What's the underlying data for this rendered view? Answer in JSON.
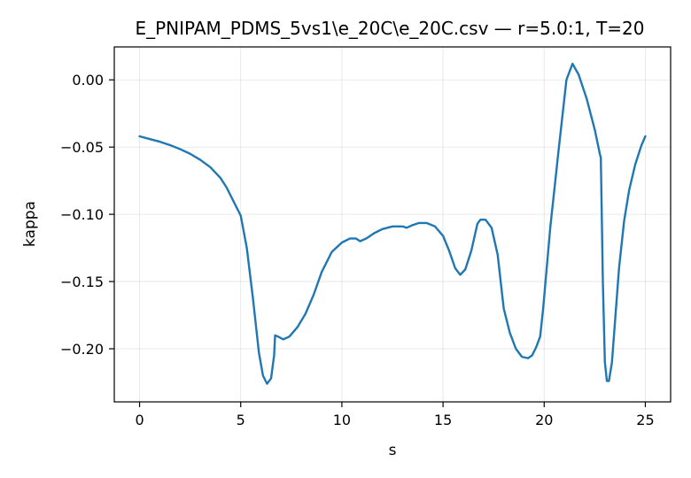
{
  "chart_data": {
    "type": "line",
    "title": "E_PNIPAM_PDMS_5vs1\\e_20C\\e_20C.csv — r=5.0:1, T=20",
    "xlabel": "s",
    "ylabel": "kappa",
    "xlim": [
      -1.25,
      26.25
    ],
    "ylim": [
      -0.2395,
      0.0245
    ],
    "x_ticks": [
      0,
      5,
      10,
      15,
      20,
      25
    ],
    "x_tick_labels": [
      "0",
      "5",
      "10",
      "15",
      "20",
      "25"
    ],
    "y_ticks": [
      0.0,
      -0.05,
      -0.1,
      -0.15,
      -0.2
    ],
    "y_tick_labels": [
      "0.00",
      "−0.05",
      "−0.10",
      "−0.15",
      "−0.20"
    ],
    "grid": true,
    "series": [
      {
        "color": "#1f77b4",
        "x": [
          0,
          0.5,
          1,
          1.5,
          2,
          2.5,
          3,
          3.5,
          4,
          4.3,
          4.6,
          5,
          5.3,
          5.6,
          5.9,
          6.1,
          6.3,
          6.5,
          6.65,
          6.7,
          6.85,
          7.1,
          7.4,
          7.8,
          8.2,
          8.6,
          9,
          9.5,
          10,
          10.4,
          10.7,
          10.9,
          11.2,
          11.6,
          12,
          12.5,
          13,
          13.2,
          13.5,
          13.8,
          14.2,
          14.6,
          15,
          15.3,
          15.6,
          15.85,
          16.1,
          16.4,
          16.7,
          16.85,
          17.1,
          17.4,
          17.7,
          18,
          18.3,
          18.6,
          18.9,
          19.2,
          19.4,
          19.6,
          19.8,
          19.95,
          20.3,
          20.7,
          21.1,
          21.4,
          21.7,
          22.1,
          22.5,
          22.75,
          22.8,
          22.9,
          23,
          23.1,
          23.2,
          23.35,
          23.5,
          23.7,
          23.95,
          24.2,
          24.5,
          24.8,
          25
        ],
        "y": [
          -0.042,
          -0.044,
          -0.046,
          -0.0485,
          -0.0515,
          -0.055,
          -0.0595,
          -0.065,
          -0.073,
          -0.08,
          -0.089,
          -0.101,
          -0.125,
          -0.162,
          -0.203,
          -0.22,
          -0.226,
          -0.222,
          -0.205,
          -0.19,
          -0.191,
          -0.193,
          -0.191,
          -0.184,
          -0.174,
          -0.16,
          -0.143,
          -0.128,
          -0.121,
          -0.118,
          -0.118,
          -0.12,
          -0.118,
          -0.114,
          -0.111,
          -0.109,
          -0.109,
          -0.11,
          -0.108,
          -0.1065,
          -0.1065,
          -0.109,
          -0.116,
          -0.127,
          -0.14,
          -0.145,
          -0.141,
          -0.127,
          -0.107,
          -0.104,
          -0.104,
          -0.11,
          -0.13,
          -0.17,
          -0.188,
          -0.2,
          -0.206,
          -0.207,
          -0.205,
          -0.199,
          -0.191,
          -0.17,
          -0.11,
          -0.054,
          0.0,
          0.012,
          0.004,
          -0.014,
          -0.037,
          -0.055,
          -0.058,
          -0.15,
          -0.21,
          -0.224,
          -0.224,
          -0.21,
          -0.18,
          -0.14,
          -0.105,
          -0.082,
          -0.063,
          -0.049,
          -0.042
        ]
      }
    ]
  }
}
